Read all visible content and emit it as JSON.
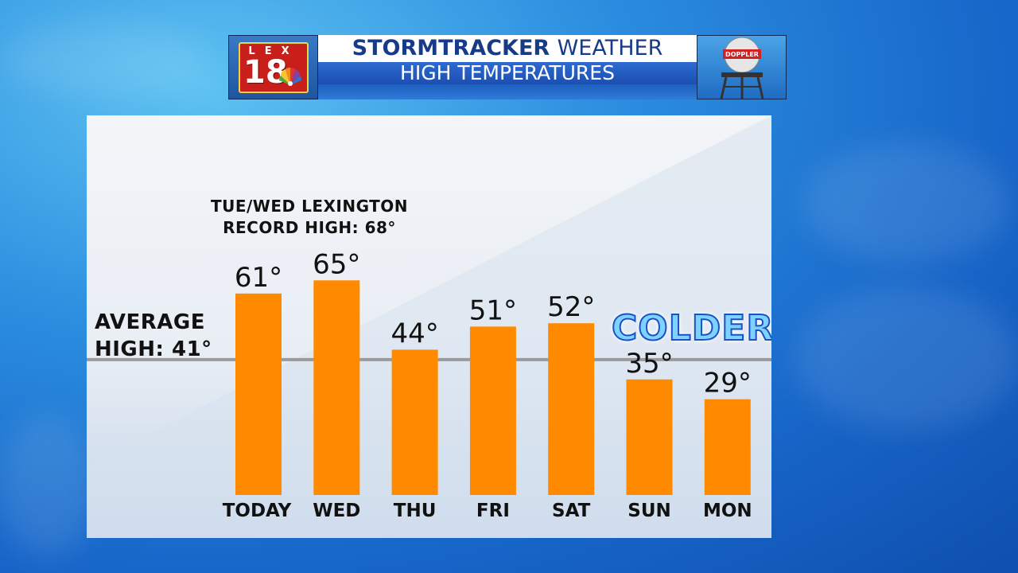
{
  "header": {
    "logo_text": "LEX",
    "logo_number": "18",
    "title_bold": "STORMTRACKER",
    "title_rest": "WEATHER",
    "subtitle": "HIGH TEMPERATURES",
    "radar_text": "DOPPLER"
  },
  "annotations": {
    "record_line1": "TUE/WED LEXINGTON",
    "record_line2": "RECORD HIGH: 68°",
    "average_line1": "AVERAGE",
    "average_line2": "HIGH: 41°",
    "colder": "COLDER"
  },
  "colors": {
    "bar": "#ff8a00",
    "average_line": "#9a9a9a",
    "title_blue": "#173b86"
  },
  "chart_data": {
    "type": "bar",
    "categories": [
      "TODAY",
      "WED",
      "THU",
      "FRI",
      "SAT",
      "SUN",
      "MON"
    ],
    "values": [
      61,
      65,
      44,
      51,
      52,
      35,
      29
    ],
    "value_labels": [
      "61°",
      "65°",
      "44°",
      "51°",
      "52°",
      "35°",
      "29°"
    ],
    "title": "HIGH TEMPERATURES",
    "reference_line": {
      "label": "AVERAGE HIGH: 41°",
      "value": 41
    },
    "ylim": [
      0,
      75
    ],
    "grid": false,
    "legend": "none"
  }
}
